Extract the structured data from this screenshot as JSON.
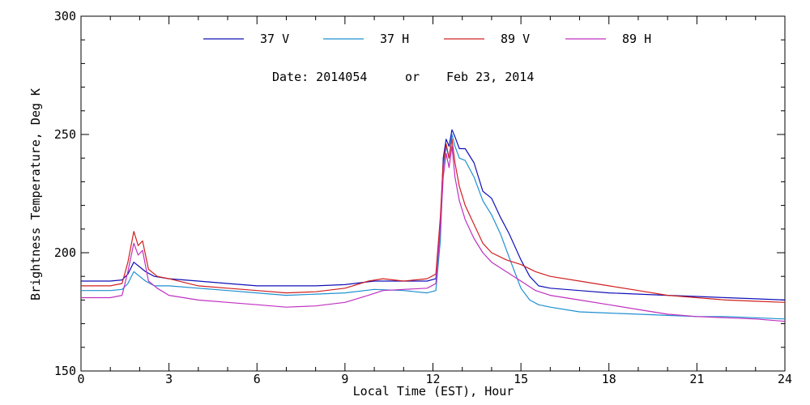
{
  "chart_data": {
    "type": "line",
    "title": "",
    "subtitle": {
      "date_label": "Date: 2014054",
      "connector": "or",
      "date_text": "Feb 23, 2014"
    },
    "xlabel": "Local Time (EST), Hour",
    "ylabel": "Brightness Temperature, Deg K",
    "xlim": [
      0,
      24
    ],
    "ylim": [
      150,
      300
    ],
    "xticks": [
      0,
      3,
      6,
      9,
      12,
      15,
      18,
      21,
      24
    ],
    "xtick_labels": [
      "0",
      "3",
      "6",
      "9",
      "12",
      "15",
      "18",
      "21",
      "24"
    ],
    "yticks": [
      150,
      200,
      250,
      300
    ],
    "ytick_labels": [
      "150",
      "200",
      "250",
      "300"
    ],
    "grid": false,
    "legend_position": "top",
    "series": [
      {
        "name": "37 V",
        "color": "#1010b8",
        "points": [
          [
            0,
            188
          ],
          [
            0.5,
            188
          ],
          [
            1.0,
            188
          ],
          [
            1.4,
            188.5
          ],
          [
            1.6,
            191
          ],
          [
            1.8,
            196
          ],
          [
            2.0,
            194
          ],
          [
            2.2,
            192
          ],
          [
            2.5,
            190
          ],
          [
            3,
            189
          ],
          [
            4,
            188
          ],
          [
            5,
            187
          ],
          [
            6,
            186
          ],
          [
            7,
            186
          ],
          [
            8,
            186
          ],
          [
            9,
            186.5
          ],
          [
            10,
            188
          ],
          [
            11,
            188
          ],
          [
            11.8,
            188
          ],
          [
            12.1,
            189
          ],
          [
            12.25,
            210
          ],
          [
            12.35,
            240
          ],
          [
            12.45,
            248
          ],
          [
            12.55,
            245
          ],
          [
            12.65,
            252
          ],
          [
            12.75,
            249
          ],
          [
            12.9,
            244
          ],
          [
            13.1,
            244
          ],
          [
            13.4,
            238
          ],
          [
            13.7,
            226
          ],
          [
            14.0,
            223
          ],
          [
            14.3,
            215
          ],
          [
            14.6,
            208
          ],
          [
            15.0,
            197
          ],
          [
            15.3,
            190
          ],
          [
            15.6,
            186
          ],
          [
            16,
            185
          ],
          [
            17,
            184
          ],
          [
            18,
            183
          ],
          [
            19,
            182.5
          ],
          [
            20,
            182
          ],
          [
            21,
            181.5
          ],
          [
            22,
            181
          ],
          [
            23,
            180.5
          ],
          [
            24,
            180
          ]
        ]
      },
      {
        "name": "37 H",
        "color": "#1e90d0",
        "points": [
          [
            0,
            184
          ],
          [
            0.5,
            184
          ],
          [
            1.0,
            184
          ],
          [
            1.4,
            184.5
          ],
          [
            1.6,
            187
          ],
          [
            1.8,
            192
          ],
          [
            2.0,
            190
          ],
          [
            2.2,
            188
          ],
          [
            2.5,
            186
          ],
          [
            3,
            186
          ],
          [
            4,
            185
          ],
          [
            5,
            184
          ],
          [
            6,
            183
          ],
          [
            7,
            182
          ],
          [
            8,
            182.5
          ],
          [
            9,
            183
          ],
          [
            10,
            184.5
          ],
          [
            11,
            184
          ],
          [
            11.8,
            183
          ],
          [
            12.1,
            184
          ],
          [
            12.25,
            205
          ],
          [
            12.35,
            236
          ],
          [
            12.45,
            245
          ],
          [
            12.55,
            240
          ],
          [
            12.65,
            250
          ],
          [
            12.75,
            245
          ],
          [
            12.9,
            240
          ],
          [
            13.1,
            239
          ],
          [
            13.4,
            232
          ],
          [
            13.7,
            222
          ],
          [
            14.0,
            216
          ],
          [
            14.3,
            208
          ],
          [
            14.6,
            198
          ],
          [
            15.0,
            185
          ],
          [
            15.3,
            180
          ],
          [
            15.6,
            178
          ],
          [
            16,
            177
          ],
          [
            17,
            175
          ],
          [
            18,
            174.5
          ],
          [
            19,
            174
          ],
          [
            20,
            173.5
          ],
          [
            21,
            173
          ],
          [
            22,
            173
          ],
          [
            23,
            172.5
          ],
          [
            24,
            172
          ]
        ]
      },
      {
        "name": "89 V",
        "color": "#d02020",
        "points": [
          [
            0,
            186
          ],
          [
            0.5,
            186
          ],
          [
            1.0,
            186
          ],
          [
            1.4,
            187
          ],
          [
            1.6,
            196
          ],
          [
            1.8,
            209
          ],
          [
            1.95,
            203
          ],
          [
            2.1,
            205
          ],
          [
            2.3,
            193
          ],
          [
            2.6,
            190
          ],
          [
            3,
            189
          ],
          [
            4,
            186
          ],
          [
            5,
            185
          ],
          [
            6,
            184
          ],
          [
            7,
            183
          ],
          [
            8,
            183.5
          ],
          [
            9,
            185
          ],
          [
            9.8,
            188
          ],
          [
            10.3,
            189
          ],
          [
            11,
            188
          ],
          [
            11.8,
            189
          ],
          [
            12.1,
            191
          ],
          [
            12.25,
            215
          ],
          [
            12.35,
            238
          ],
          [
            12.45,
            246
          ],
          [
            12.55,
            240
          ],
          [
            12.65,
            248
          ],
          [
            12.75,
            238
          ],
          [
            12.9,
            228
          ],
          [
            13.1,
            220
          ],
          [
            13.4,
            212
          ],
          [
            13.7,
            204
          ],
          [
            14.0,
            200
          ],
          [
            14.5,
            197
          ],
          [
            15.0,
            195
          ],
          [
            15.5,
            192
          ],
          [
            16,
            190
          ],
          [
            17,
            188
          ],
          [
            18,
            186
          ],
          [
            19,
            184
          ],
          [
            20,
            182
          ],
          [
            21,
            181
          ],
          [
            22,
            180
          ],
          [
            23,
            179.5
          ],
          [
            24,
            179
          ]
        ]
      },
      {
        "name": "89 H",
        "color": "#c030c0",
        "points": [
          [
            0,
            181
          ],
          [
            0.5,
            181
          ],
          [
            1.0,
            181
          ],
          [
            1.4,
            182
          ],
          [
            1.6,
            192
          ],
          [
            1.8,
            204
          ],
          [
            1.95,
            199
          ],
          [
            2.1,
            201
          ],
          [
            2.3,
            188
          ],
          [
            2.6,
            185
          ],
          [
            3,
            182
          ],
          [
            4,
            180
          ],
          [
            5,
            179
          ],
          [
            6,
            178
          ],
          [
            7,
            177
          ],
          [
            8,
            177.5
          ],
          [
            9,
            179
          ],
          [
            9.8,
            182
          ],
          [
            10.3,
            184
          ],
          [
            11,
            184.5
          ],
          [
            11.8,
            185
          ],
          [
            12.1,
            187
          ],
          [
            12.25,
            210
          ],
          [
            12.35,
            232
          ],
          [
            12.45,
            242
          ],
          [
            12.55,
            236
          ],
          [
            12.65,
            245
          ],
          [
            12.75,
            232
          ],
          [
            12.9,
            222
          ],
          [
            13.1,
            214
          ],
          [
            13.4,
            206
          ],
          [
            13.7,
            200
          ],
          [
            14.0,
            196
          ],
          [
            14.5,
            192
          ],
          [
            15.0,
            188
          ],
          [
            15.5,
            184
          ],
          [
            16,
            182
          ],
          [
            17,
            180
          ],
          [
            18,
            178
          ],
          [
            19,
            176
          ],
          [
            20,
            174
          ],
          [
            21,
            173
          ],
          [
            22,
            172.5
          ],
          [
            23,
            172
          ],
          [
            24,
            171
          ]
        ]
      }
    ]
  }
}
